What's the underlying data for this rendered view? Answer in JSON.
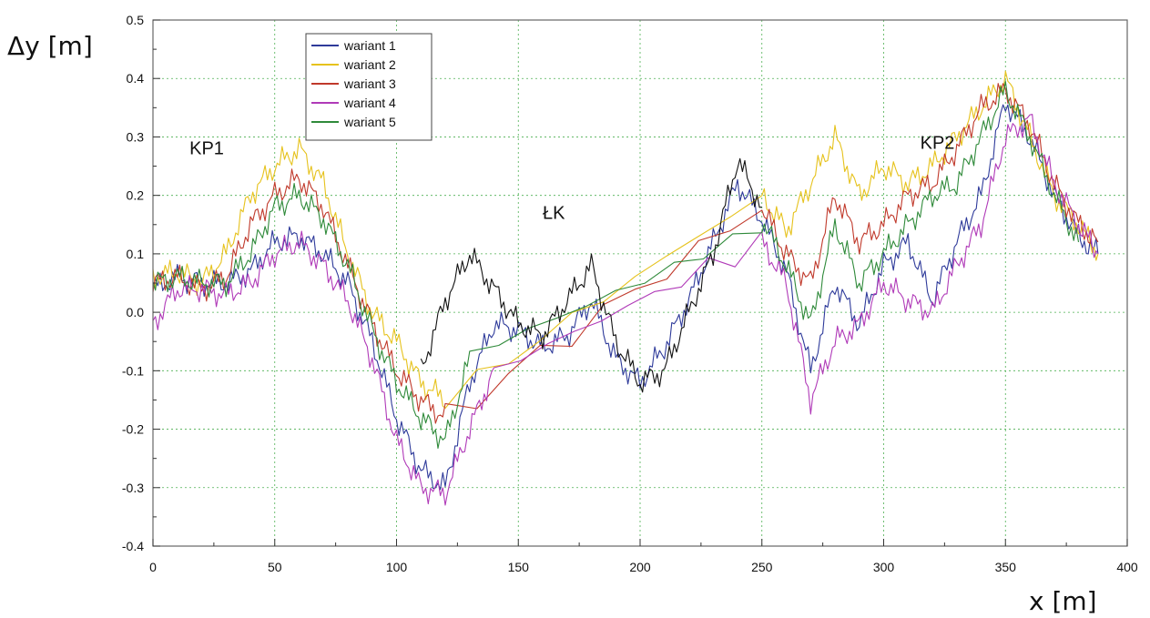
{
  "chart_data": {
    "type": "line",
    "xlabel": "x [m]",
    "ylabel": "Δy [m]",
    "xlim": [
      0,
      400
    ],
    "ylim": [
      -0.4,
      0.5
    ],
    "xticks": [
      0,
      50,
      100,
      150,
      200,
      250,
      300,
      350,
      400
    ],
    "yticks": [
      -0.4,
      -0.3,
      -0.2,
      -0.1,
      0.0,
      0.1,
      0.2,
      0.3,
      0.4,
      0.5
    ],
    "ytick_labels": [
      "-0.4",
      "-0.3",
      "-0.2",
      "-0.1",
      "0.0",
      "0.1",
      "0.2",
      "0.3",
      "0.4",
      "0.5"
    ],
    "grid": true,
    "legend_position": "top-left inside plot",
    "annotations": [
      {
        "text": "KP1",
        "x": 15,
        "y": 0.27
      },
      {
        "text": "ŁK",
        "x": 160,
        "y": 0.16
      },
      {
        "text": "KP2",
        "x": 315,
        "y": 0.28
      }
    ],
    "series": [
      {
        "name": "wariant 1",
        "color": "#2e3a9a",
        "x": [
          0,
          10,
          20,
          30,
          40,
          50,
          60,
          70,
          80,
          90,
          100,
          110,
          120,
          130,
          140,
          150,
          160,
          170,
          180,
          190,
          200,
          210,
          220,
          230,
          240,
          250,
          260,
          270,
          280,
          290,
          300,
          310,
          320,
          330,
          340,
          350,
          360,
          370,
          380,
          388
        ],
        "y": [
          0.04,
          0.06,
          0.05,
          0.05,
          0.07,
          0.12,
          0.13,
          0.1,
          0.05,
          -0.05,
          -0.18,
          -0.27,
          -0.3,
          -0.12,
          -0.02,
          -0.03,
          -0.06,
          -0.04,
          0.02,
          -0.08,
          -0.12,
          -0.06,
          0.02,
          0.12,
          0.22,
          0.16,
          0.07,
          -0.1,
          0.05,
          -0.02,
          0.08,
          0.12,
          0.02,
          0.12,
          0.2,
          0.36,
          0.3,
          0.2,
          0.13,
          0.1
        ]
      },
      {
        "name": "wariant 2",
        "color": "#e6c21c",
        "x": [
          0,
          10,
          20,
          30,
          40,
          50,
          60,
          70,
          80,
          90,
          100,
          110,
          120,
          250,
          260,
          270,
          280,
          290,
          300,
          310,
          320,
          330,
          340,
          350,
          360,
          370,
          380,
          388
        ],
        "y": [
          0.06,
          0.07,
          0.05,
          0.1,
          0.2,
          0.25,
          0.28,
          0.22,
          0.1,
          0.0,
          -0.05,
          -0.12,
          -0.15,
          0.2,
          0.14,
          0.22,
          0.3,
          0.2,
          0.25,
          0.22,
          0.25,
          0.3,
          0.35,
          0.4,
          0.3,
          0.2,
          0.15,
          0.1
        ]
      },
      {
        "name": "wariant 3",
        "color": "#c0392b",
        "x": [
          0,
          10,
          20,
          30,
          40,
          50,
          60,
          70,
          80,
          90,
          100,
          110,
          120,
          250,
          260,
          270,
          280,
          290,
          300,
          310,
          320,
          330,
          340,
          350,
          360,
          370,
          380,
          388
        ],
        "y": [
          0.05,
          0.06,
          0.04,
          0.06,
          0.15,
          0.2,
          0.23,
          0.18,
          0.08,
          -0.02,
          -0.1,
          -0.15,
          -0.18,
          0.18,
          0.1,
          0.05,
          0.2,
          0.12,
          0.15,
          0.2,
          0.22,
          0.28,
          0.35,
          0.38,
          0.32,
          0.22,
          0.15,
          0.12
        ]
      },
      {
        "name": "wariant 4",
        "color": "#b03ab8",
        "x": [
          0,
          10,
          20,
          30,
          40,
          50,
          60,
          70,
          80,
          90,
          100,
          110,
          120,
          130,
          140,
          250,
          260,
          270,
          280,
          290,
          300,
          310,
          320,
          330,
          340,
          350,
          360,
          370,
          380,
          388
        ],
        "y": [
          -0.02,
          0.04,
          0.04,
          0.03,
          0.05,
          0.1,
          0.12,
          0.08,
          0.02,
          -0.08,
          -0.22,
          -0.3,
          -0.31,
          -0.2,
          -0.1,
          0.12,
          0.05,
          -0.15,
          -0.05,
          -0.02,
          0.05,
          0.02,
          0.0,
          0.08,
          0.15,
          0.3,
          0.33,
          0.22,
          0.15,
          0.1
        ]
      },
      {
        "name": "wariant 5",
        "color": "#2f8a3a",
        "x": [
          0,
          10,
          20,
          30,
          40,
          50,
          60,
          70,
          80,
          90,
          100,
          110,
          120,
          130,
          250,
          260,
          270,
          280,
          290,
          300,
          310,
          320,
          330,
          340,
          350,
          360,
          370,
          380
        ],
        "y": [
          0.05,
          0.06,
          0.05,
          0.05,
          0.1,
          0.18,
          0.2,
          0.16,
          0.08,
          -0.03,
          -0.12,
          -0.18,
          -0.22,
          -0.08,
          0.16,
          0.08,
          -0.02,
          0.15,
          0.05,
          0.1,
          0.15,
          0.2,
          0.22,
          0.3,
          0.38,
          0.3,
          0.2,
          0.12
        ]
      },
      {
        "name": "",
        "color": "#111111",
        "x": [
          110,
          120,
          130,
          140,
          150,
          160,
          170,
          180,
          190,
          200,
          210,
          220,
          230,
          240,
          250
        ],
        "y": [
          -0.1,
          0.02,
          0.1,
          0.04,
          -0.02,
          -0.04,
          0.02,
          0.08,
          -0.05,
          -0.12,
          -0.1,
          0.0,
          0.1,
          0.26,
          0.18
        ]
      }
    ]
  }
}
